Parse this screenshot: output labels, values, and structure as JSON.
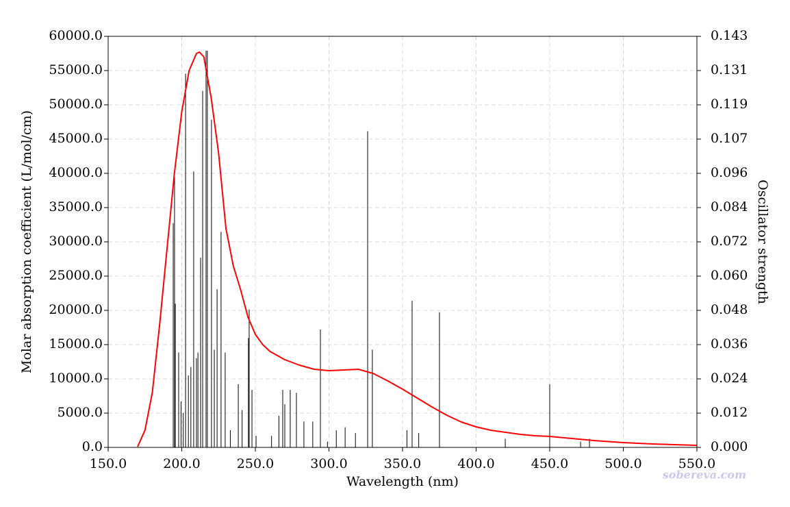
{
  "chart_data": {
    "type": "line",
    "xlabel": "Wavelength (nm)",
    "ylabel": "Molar absorption coefficient (L/mol/cm)",
    "y2label": "Oscillator strength",
    "watermark": "sobereva.com",
    "grid": true,
    "xlim": [
      150,
      550
    ],
    "xticks": [
      {
        "value": 150,
        "label": "150.0"
      },
      {
        "value": 200,
        "label": "200.0"
      },
      {
        "value": 250,
        "label": "250.0"
      },
      {
        "value": 300,
        "label": "300.0"
      },
      {
        "value": 350,
        "label": "350.0"
      },
      {
        "value": 400,
        "label": "400.0"
      },
      {
        "value": 450,
        "label": "450.0"
      },
      {
        "value": 500,
        "label": "500.0"
      },
      {
        "value": 550,
        "label": "550.0"
      }
    ],
    "ylim": [
      0,
      60000
    ],
    "yticks": [
      {
        "value": 0,
        "label": "0.0"
      },
      {
        "value": 5000,
        "label": "5000.0"
      },
      {
        "value": 10000,
        "label": "10000.0"
      },
      {
        "value": 15000,
        "label": "15000.0"
      },
      {
        "value": 20000,
        "label": "20000.0"
      },
      {
        "value": 25000,
        "label": "25000.0"
      },
      {
        "value": 30000,
        "label": "30000.0"
      },
      {
        "value": 35000,
        "label": "35000.0"
      },
      {
        "value": 40000,
        "label": "40000.0"
      },
      {
        "value": 45000,
        "label": "45000.0"
      },
      {
        "value": 50000,
        "label": "50000.0"
      },
      {
        "value": 55000,
        "label": "55000.0"
      },
      {
        "value": 60000,
        "label": "60000.0"
      }
    ],
    "y2lim": [
      0,
      0.143
    ],
    "y2ticks": [
      {
        "value": 0,
        "label": "0.000"
      },
      {
        "value": 0.011917,
        "label": "0.012"
      },
      {
        "value": 0.023833,
        "label": "0.024"
      },
      {
        "value": 0.03575,
        "label": "0.036"
      },
      {
        "value": 0.047667,
        "label": "0.048"
      },
      {
        "value": 0.059583,
        "label": "0.060"
      },
      {
        "value": 0.0715,
        "label": "0.072"
      },
      {
        "value": 0.083417,
        "label": "0.084"
      },
      {
        "value": 0.095333,
        "label": "0.096"
      },
      {
        "value": 0.10725,
        "label": "0.107"
      },
      {
        "value": 0.119167,
        "label": "0.119"
      },
      {
        "value": 0.131083,
        "label": "0.131"
      },
      {
        "value": 0.143,
        "label": "0.143"
      }
    ],
    "series": [
      {
        "type": "line",
        "color": "#ff0000",
        "x": [
          170,
          175,
          180,
          185,
          190,
          195,
          200,
          205,
          210,
          212,
          215,
          220,
          225,
          230,
          235,
          240,
          245,
          250,
          255,
          260,
          270,
          280,
          290,
          300,
          310,
          320,
          330,
          340,
          350,
          360,
          370,
          380,
          390,
          400,
          410,
          420,
          430,
          440,
          450,
          460,
          470,
          480,
          490,
          500,
          520,
          550
        ],
        "values": [
          100,
          2500,
          8000,
          18000,
          29000,
          40000,
          49000,
          55000,
          57500,
          57700,
          57000,
          51000,
          43000,
          32000,
          26500,
          23000,
          19000,
          16500,
          15000,
          14000,
          12800,
          12000,
          11400,
          11200,
          11300,
          11400,
          10800,
          9700,
          8500,
          7200,
          5900,
          4700,
          3700,
          3000,
          2500,
          2200,
          1900,
          1700,
          1600,
          1400,
          1200,
          1000,
          850,
          700,
          500,
          300
        ]
      },
      {
        "type": "stick",
        "color": "#000000",
        "axis": "y2",
        "x": [
          194.2,
          195.1,
          195.6,
          197.9,
          199.5,
          201,
          202.6,
          204.5,
          206.2,
          208.1,
          210,
          211,
          212.8,
          214.2,
          216.5,
          217.4,
          220.2,
          222.1,
          224,
          226.7,
          229.5,
          233,
          238.4,
          241,
          245.3,
          245.8,
          247.7,
          250.5,
          261,
          266,
          268.6,
          270,
          273.7,
          277.9,
          283,
          289,
          294.2,
          299,
          305,
          311,
          318,
          326.3,
          329.5,
          353,
          356.5,
          361,
          375.1,
          419.8,
          450,
          471,
          477
        ],
        "values": [
          0.078,
          0.094,
          0.05,
          0.033,
          0.016,
          0.012,
          0.13,
          0.025,
          0.028,
          0.096,
          0.031,
          0.033,
          0.066,
          0.124,
          0.138,
          0.138,
          0.114,
          0.034,
          0.055,
          0.075,
          0.033,
          0.006,
          0.022,
          0.013,
          0.038,
          0.048,
          0.02,
          0.004,
          0.004,
          0.011,
          0.02,
          0.015,
          0.02,
          0.019,
          0.009,
          0.009,
          0.041,
          0.002,
          0.006,
          0.007,
          0.005,
          0.11,
          0.034,
          0.006,
          0.051,
          0.005,
          0.047,
          0.003,
          0.022,
          0.002,
          0.003
        ]
      }
    ]
  }
}
